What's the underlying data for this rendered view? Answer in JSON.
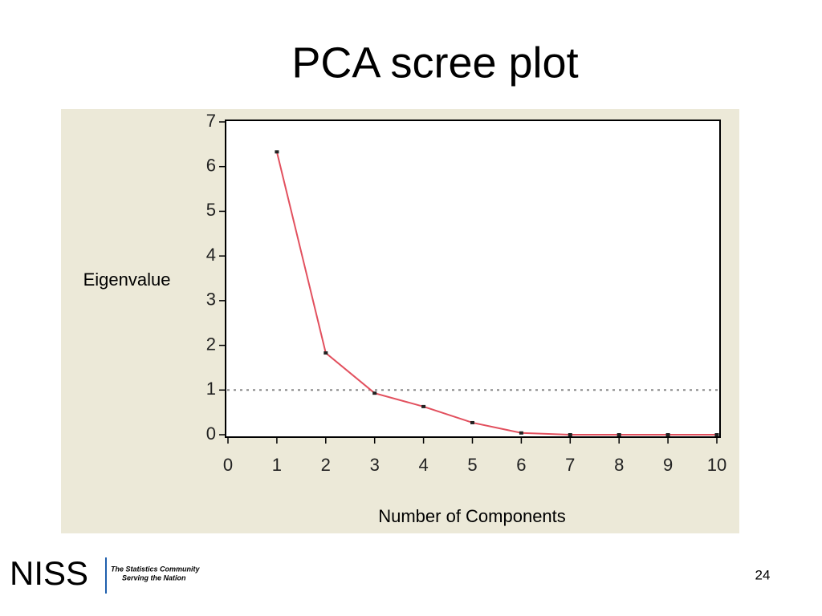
{
  "chart_data": {
    "type": "line",
    "title": "PCA scree plot",
    "x_label": "Number of Components",
    "y_label": "Eigenvalue",
    "x": [
      1,
      2,
      3,
      4,
      5,
      6,
      7,
      8,
      9,
      10
    ],
    "values": [
      6.33,
      1.83,
      0.93,
      0.63,
      0.27,
      0.04,
      0.0,
      0.0,
      0.0,
      0.0
    ],
    "color": "#e2505e",
    "marker_color": "#222222",
    "xlim": [
      0,
      10
    ],
    "xticks": [
      0,
      1,
      2,
      3,
      4,
      5,
      6,
      7,
      8,
      9,
      10
    ],
    "ylim": [
      0,
      7
    ],
    "yticks": [
      0,
      1,
      2,
      3,
      4,
      5,
      6,
      7
    ],
    "reference_line": 1,
    "grid": false
  },
  "footer": {
    "logo": "NISS",
    "tagline": [
      "The Statistics Community",
      "Serving the Nation"
    ],
    "page_number": 24
  }
}
